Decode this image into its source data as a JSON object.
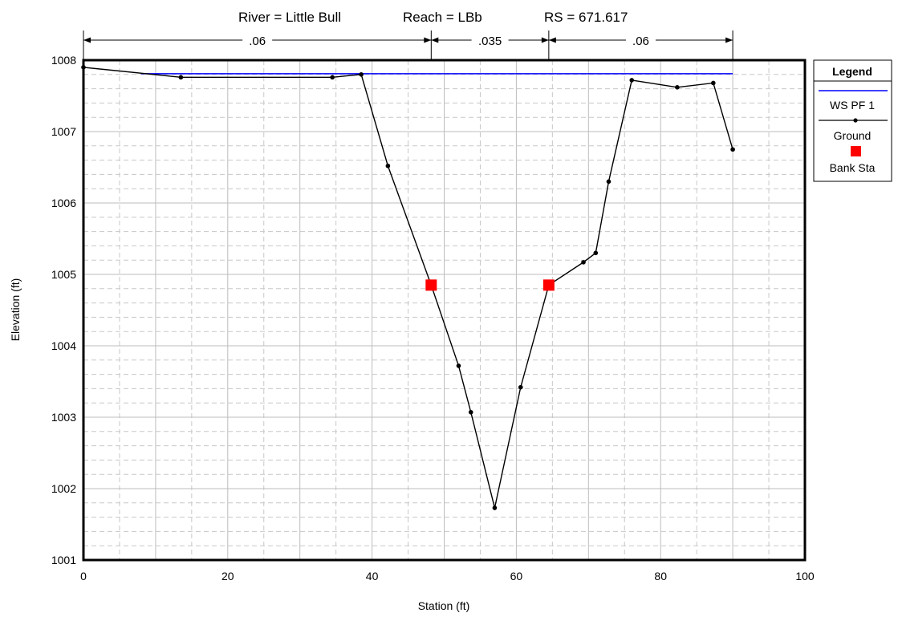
{
  "title": {
    "river": "River = Little Bull",
    "reach": "Reach = LBb",
    "rs": "RS = 671.617"
  },
  "legend": {
    "title": "Legend",
    "items": [
      {
        "label": "WS PF 1",
        "kind": "line",
        "color": "#0000ff"
      },
      {
        "label": "Ground",
        "kind": "line-marker",
        "color": "#000000"
      },
      {
        "label": "Bank Sta",
        "kind": "square",
        "color": "#ff0000"
      }
    ]
  },
  "chart_data": {
    "type": "line",
    "title": "River = Little Bull   Reach = LBb     RS = 671.617",
    "xlabel": "Station (ft)",
    "ylabel": "Elevation (ft)",
    "xlim": [
      0,
      100
    ],
    "ylim": [
      1001,
      1008
    ],
    "xticks": [
      "0",
      "20",
      "40",
      "60",
      "80",
      "100"
    ],
    "yticks": [
      "1001",
      "1002",
      "1003",
      "1004",
      "1005",
      "1006",
      "1007",
      "1008"
    ],
    "grid": true,
    "legend_position": "right",
    "series": [
      {
        "name": "WS PF 1",
        "color": "#0000ff",
        "x": [
          8,
          90
        ],
        "y": [
          1007.81,
          1007.81
        ]
      },
      {
        "name": "Ground",
        "color": "#000000",
        "x": [
          0,
          13.5,
          34.5,
          38.5,
          42.2,
          48.2,
          52.0,
          53.7,
          57.0,
          60.6,
          64.5,
          69.3,
          71.0,
          72.8,
          76.0,
          82.3,
          87.3,
          90.0
        ],
        "y": [
          1007.9,
          1007.76,
          1007.76,
          1007.8,
          1006.52,
          1004.85,
          1003.72,
          1003.07,
          1001.73,
          1003.42,
          1004.85,
          1005.17,
          1005.3,
          1006.3,
          1007.72,
          1007.62,
          1007.68,
          1006.75
        ]
      },
      {
        "name": "Bank Sta",
        "color": "#ff0000",
        "x": [
          48.2,
          64.5
        ],
        "y": [
          1004.85,
          1004.85
        ]
      }
    ],
    "mannings_n": {
      "stations": [
        0,
        48.2,
        64.5,
        90
      ],
      "labels": [
        ".06",
        ".035",
        ".06"
      ]
    }
  }
}
